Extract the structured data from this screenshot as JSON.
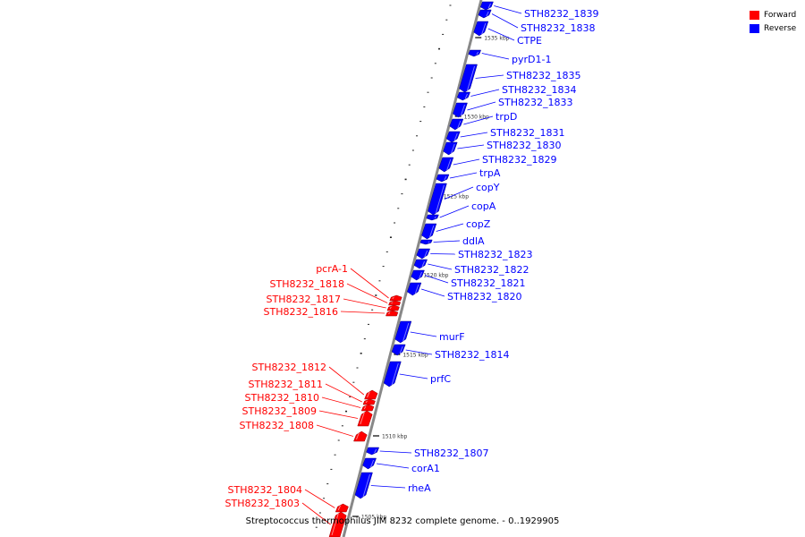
{
  "genome": {
    "caption": "Streptococcus thermophilus JIM 8232 complete genome. - 0..1929905",
    "units": "kbp"
  },
  "legend": {
    "forward_label": "Forward",
    "reverse_label": "Reverse",
    "forward_color": "#ff0000",
    "reverse_color": "#0000ff"
  },
  "backbone_color": "#888888",
  "ticks": [
    {
      "label": "1535 kbp",
      "kbp": 1535
    },
    {
      "label": "1530 kbp",
      "kbp": 1530
    },
    {
      "label": "1525 kbp",
      "kbp": 1525
    },
    {
      "label": "1520 kbp",
      "kbp": 1520
    },
    {
      "label": "1515 kbp",
      "kbp": 1515
    },
    {
      "label": "1510 kbp",
      "kbp": 1510
    },
    {
      "label": "1505 kbp",
      "kbp": 1505
    }
  ],
  "genes": [
    {
      "name": "STH8232_1839",
      "strand": "reverse"
    },
    {
      "name": "STH8232_1838",
      "strand": "reverse"
    },
    {
      "name": "CTPE",
      "strand": "reverse"
    },
    {
      "name": "pyrD1-1",
      "strand": "reverse"
    },
    {
      "name": "STH8232_1835",
      "strand": "reverse"
    },
    {
      "name": "STH8232_1834",
      "strand": "reverse"
    },
    {
      "name": "STH8232_1833",
      "strand": "reverse"
    },
    {
      "name": "trpD",
      "strand": "reverse"
    },
    {
      "name": "STH8232_1831",
      "strand": "reverse"
    },
    {
      "name": "STH8232_1830",
      "strand": "reverse"
    },
    {
      "name": "STH8232_1829",
      "strand": "reverse"
    },
    {
      "name": "trpA",
      "strand": "reverse"
    },
    {
      "name": "copY",
      "strand": "reverse"
    },
    {
      "name": "copA",
      "strand": "reverse"
    },
    {
      "name": "copZ",
      "strand": "reverse"
    },
    {
      "name": "ddlA",
      "strand": "reverse"
    },
    {
      "name": "STH8232_1823",
      "strand": "reverse"
    },
    {
      "name": "STH8232_1822",
      "strand": "reverse"
    },
    {
      "name": "STH8232_1821",
      "strand": "reverse"
    },
    {
      "name": "STH8232_1820",
      "strand": "reverse"
    },
    {
      "name": "pcrA-1",
      "strand": "forward"
    },
    {
      "name": "STH8232_1818",
      "strand": "forward"
    },
    {
      "name": "STH8232_1817",
      "strand": "forward"
    },
    {
      "name": "STH8232_1816",
      "strand": "forward"
    },
    {
      "name": "murF",
      "strand": "reverse"
    },
    {
      "name": "STH8232_1814",
      "strand": "reverse"
    },
    {
      "name": "prfC",
      "strand": "reverse"
    },
    {
      "name": "STH8232_1812",
      "strand": "forward"
    },
    {
      "name": "STH8232_1811",
      "strand": "forward"
    },
    {
      "name": "STH8232_1810",
      "strand": "forward"
    },
    {
      "name": "STH8232_1809",
      "strand": "forward"
    },
    {
      "name": "STH8232_1808",
      "strand": "forward"
    },
    {
      "name": "STH8232_1807",
      "strand": "reverse"
    },
    {
      "name": "corA1",
      "strand": "reverse"
    },
    {
      "name": "rheA",
      "strand": "reverse"
    },
    {
      "name": "STH8232_1804",
      "strand": "forward"
    },
    {
      "name": "STH8232_1803",
      "strand": "forward"
    }
  ]
}
